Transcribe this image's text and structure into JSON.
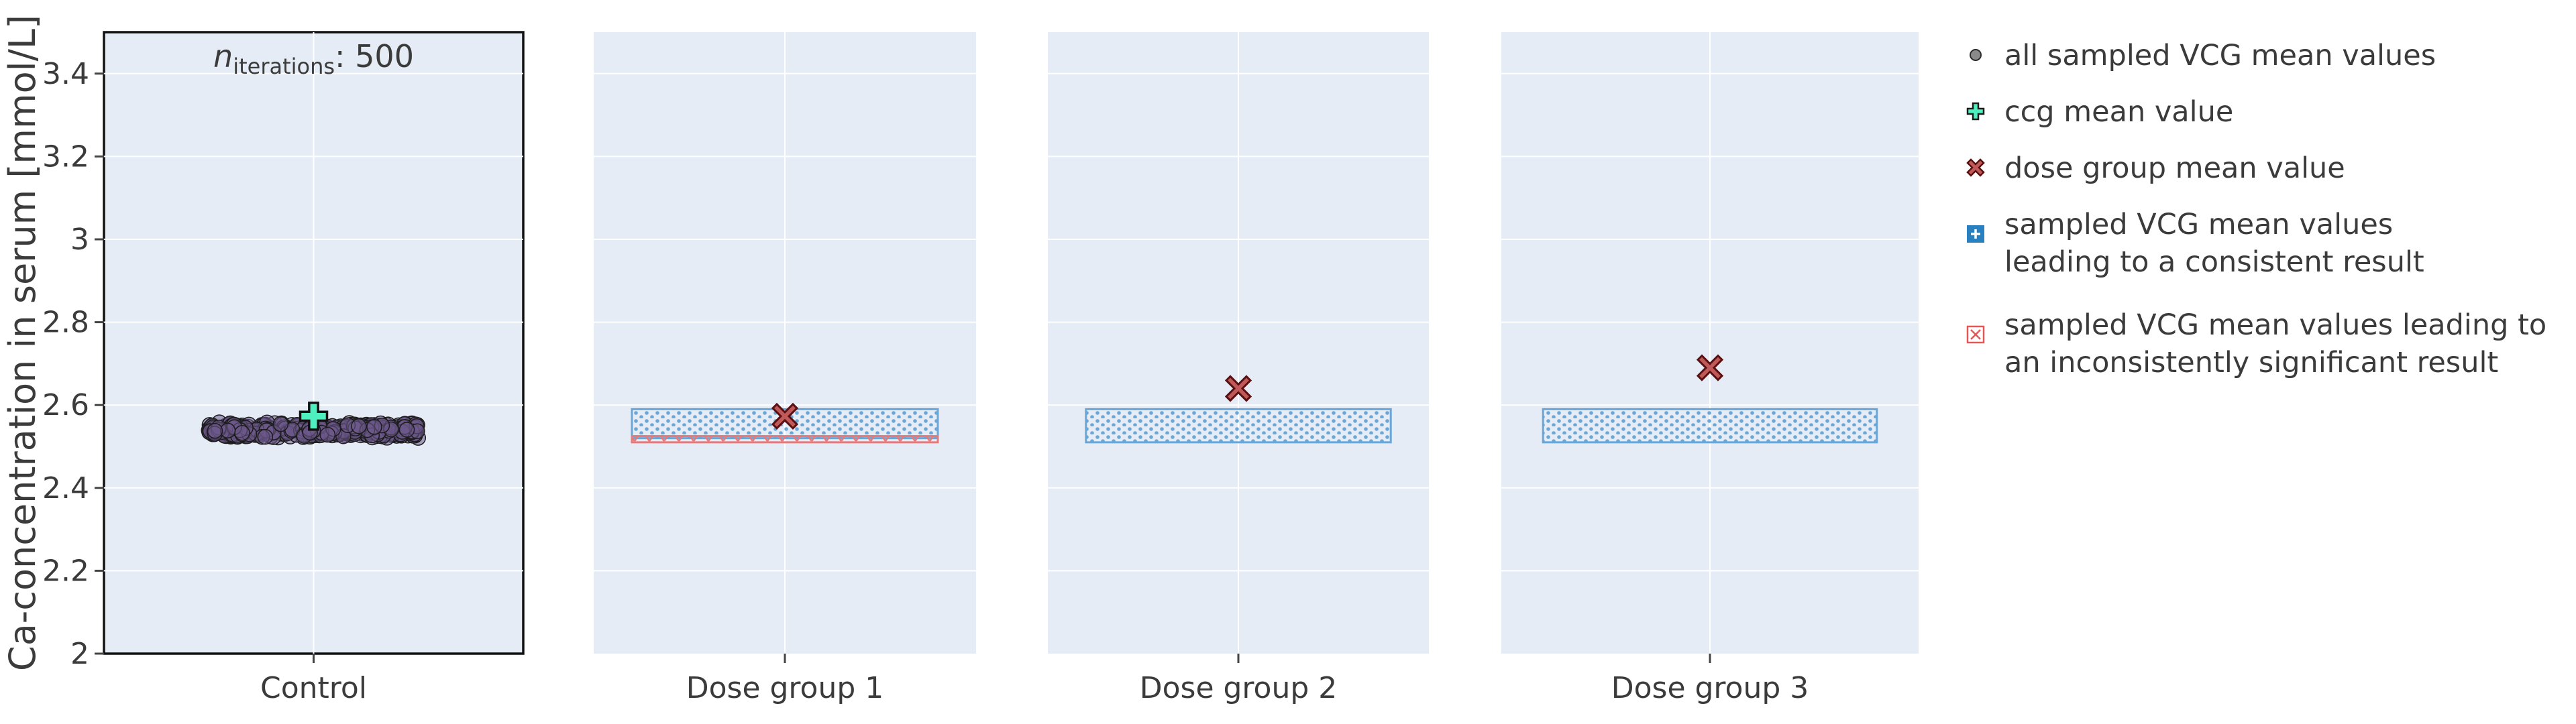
{
  "chart_data": {
    "type": "scatter",
    "ylabel": "Ca-concentration in serum [mmol/L]",
    "ylim": [
      2.0,
      3.5
    ],
    "y_ticks": [
      "2",
      "2.2",
      "2.4",
      "2.6",
      "2.8",
      "3",
      "3.2",
      "3.4"
    ],
    "annotation": {
      "prefix": "n",
      "subscript": "iterations",
      "suffix": ": 500"
    },
    "panels": [
      {
        "category": "Control",
        "sampled_vcg_means": {
          "count": 500,
          "center": 2.54,
          "spread": 0.02
        },
        "ccg_mean": 2.573
      },
      {
        "category": "Dose group 1",
        "dose_group_mean": 2.573,
        "consistent_range": [
          2.52,
          2.59
        ],
        "inconsistently_significant_range": [
          2.51,
          2.525
        ]
      },
      {
        "category": "Dose group 2",
        "dose_group_mean": 2.64,
        "consistent_range": [
          2.51,
          2.59
        ]
      },
      {
        "category": "Dose group 3",
        "dose_group_mean": 2.69,
        "consistent_range": [
          2.51,
          2.59
        ]
      }
    ],
    "legend": [
      {
        "marker": "circle",
        "label": "all sampled VCG mean values"
      },
      {
        "marker": "cross",
        "label": "ccg mean value"
      },
      {
        "marker": "x",
        "label": "dose group mean value"
      },
      {
        "marker": "square-cross",
        "label": "sampled VCG mean values\nleading to a consistent result"
      },
      {
        "marker": "square-x",
        "label": "sampled VCG mean values leading to\nan inconsistently significant result"
      }
    ],
    "legend_placement": "right",
    "colors": {
      "panel_bg": "#e5ecf6",
      "grid": "#ffffff",
      "sampled_points": "#3d2d55",
      "ccg_marker": "#4ff0c0",
      "dose_marker": "#c05a5a",
      "consistent": "#2980c0",
      "inconsistent": "#e05858"
    }
  }
}
